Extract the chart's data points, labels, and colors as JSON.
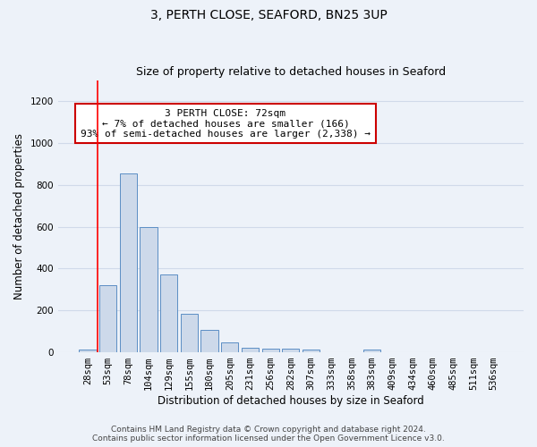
{
  "title": "3, PERTH CLOSE, SEAFORD, BN25 3UP",
  "subtitle": "Size of property relative to detached houses in Seaford",
  "xlabel": "Distribution of detached houses by size in Seaford",
  "ylabel": "Number of detached properties",
  "bar_labels": [
    "28sqm",
    "53sqm",
    "78sqm",
    "104sqm",
    "129sqm",
    "155sqm",
    "180sqm",
    "205sqm",
    "231sqm",
    "256sqm",
    "282sqm",
    "307sqm",
    "333sqm",
    "358sqm",
    "383sqm",
    "409sqm",
    "434sqm",
    "460sqm",
    "485sqm",
    "511sqm",
    "536sqm"
  ],
  "bar_values": [
    15,
    320,
    855,
    600,
    370,
    185,
    105,
    48,
    22,
    17,
    17,
    12,
    0,
    0,
    12,
    0,
    0,
    0,
    0,
    0,
    0
  ],
  "bar_color": "#cdd9ea",
  "bar_edge_color": "#5b8ec4",
  "ylim": [
    0,
    1300
  ],
  "yticks": [
    0,
    200,
    400,
    600,
    800,
    1000,
    1200
  ],
  "red_line_x": 0.5,
  "annotation_text": "3 PERTH CLOSE: 72sqm\n← 7% of detached houses are smaller (166)\n93% of semi-detached houses are larger (2,338) →",
  "annotation_box_color": "#ffffff",
  "annotation_box_edge": "#cc0000",
  "footer_line1": "Contains HM Land Registry data © Crown copyright and database right 2024.",
  "footer_line2": "Contains public sector information licensed under the Open Government Licence v3.0.",
  "background_color": "#edf2f9",
  "grid_color": "#d0daea",
  "title_fontsize": 10,
  "subtitle_fontsize": 9,
  "axis_label_fontsize": 8.5,
  "tick_fontsize": 7.5,
  "annotation_fontsize": 8,
  "footer_fontsize": 6.5
}
